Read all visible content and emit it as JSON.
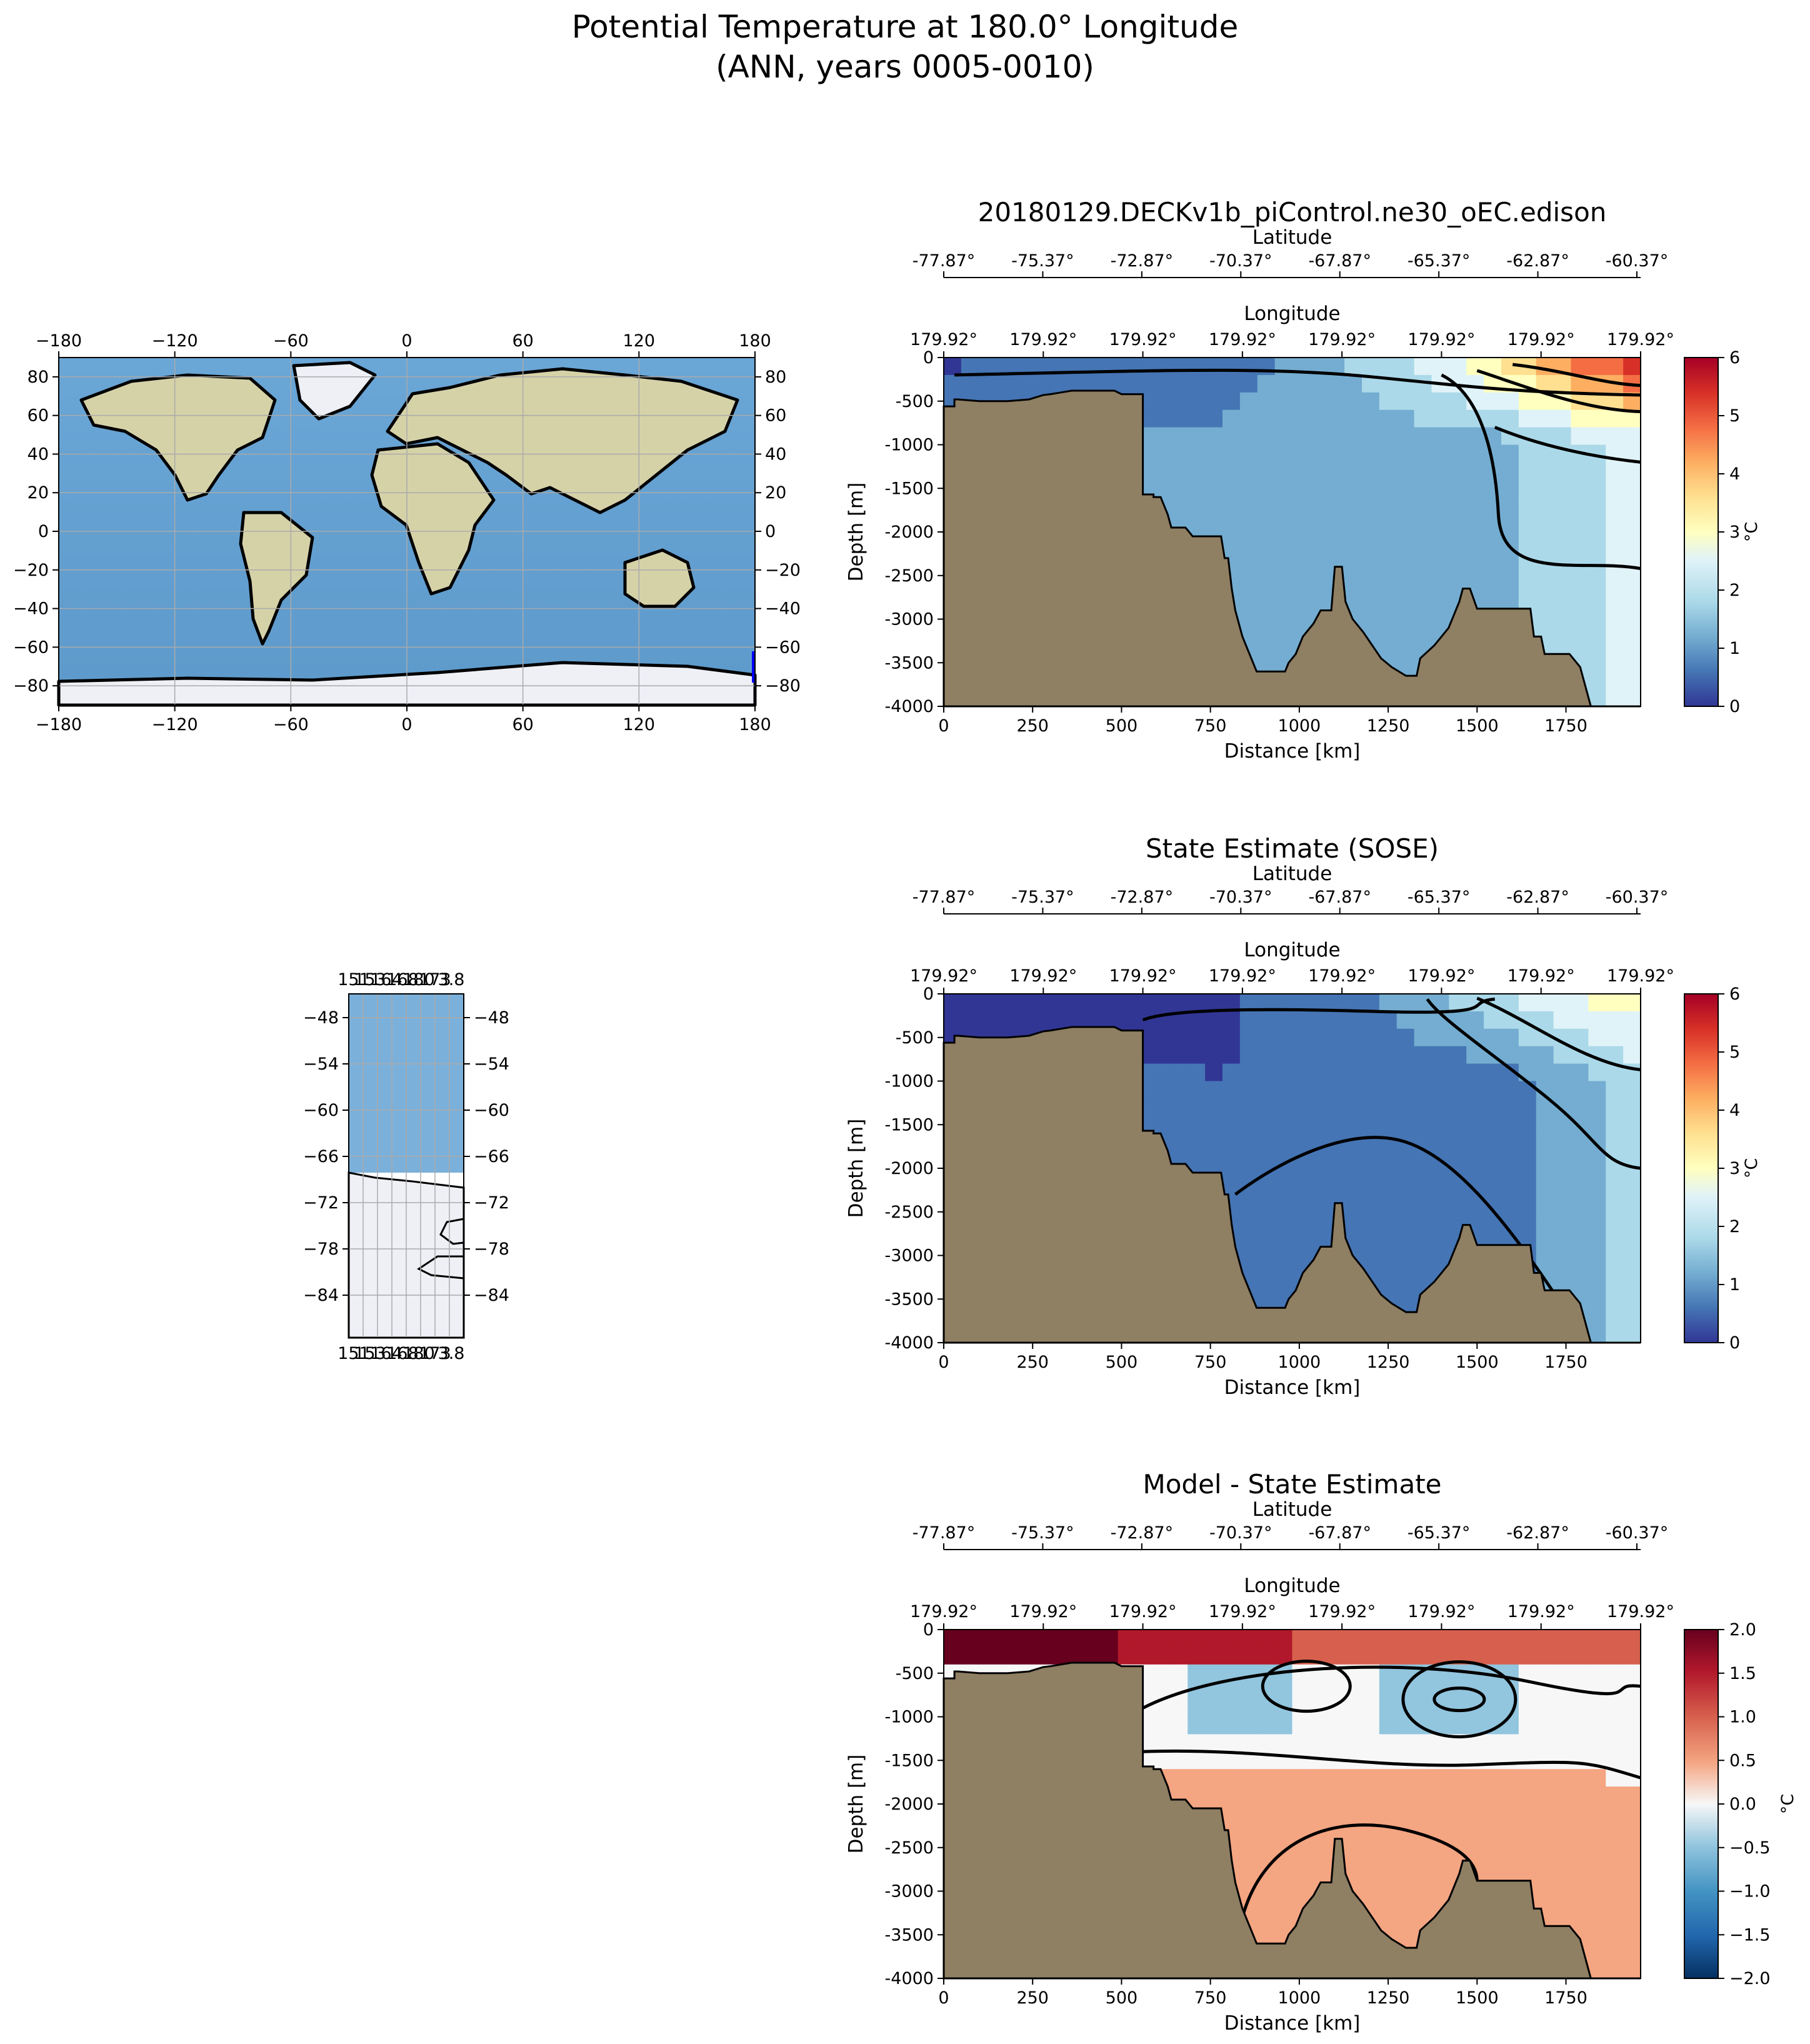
{
  "figure": {
    "title_line1": "Potential Temperature at 180.0° Longitude",
    "title_line2": "(ANN, years 0005-0010)"
  },
  "colors": {
    "land": "#8f7f63",
    "ocean_map": "#6fa8d4",
    "land_map": "#d6d2a8",
    "ice_map": "#eef0f6",
    "contour": "#000000",
    "grid": "#aaaaaa"
  },
  "maps": {
    "global": {
      "x_ticks": [
        "−180",
        "−120",
        "−60",
        "0",
        "60",
        "120",
        "180"
      ],
      "y_ticks": [
        "80",
        "60",
        "40",
        "20",
        "0",
        "−20",
        "−40",
        "−60",
        "−80"
      ]
    },
    "regional": {
      "x_ticks_overlapping_text": [
        "151",
        "153",
        "164",
        "168",
        "180",
        "173",
        "3.8"
      ],
      "y_ticks": [
        "−48",
        "−54",
        "−60",
        "−66",
        "−72",
        "−78",
        "−84"
      ]
    }
  },
  "panels": [
    {
      "title": "20180129.DECKv1b_piControl.ne30_oEC.edison",
      "colorbar": {
        "label": "°C",
        "cmap": "RdYlBu_r",
        "vmin": 0,
        "vmax": 6,
        "ticks": [
          "0",
          "1",
          "2",
          "3",
          "4",
          "5",
          "6"
        ]
      },
      "contour_levels": [
        0.5,
        1,
        1.5,
        2,
        2.5,
        3,
        3.5,
        4,
        5
      ]
    },
    {
      "title": "State Estimate (SOSE)",
      "colorbar": {
        "label": "°C",
        "cmap": "RdYlBu_r",
        "vmin": 0,
        "vmax": 6,
        "ticks": [
          "0",
          "1",
          "2",
          "3",
          "4",
          "5",
          "6"
        ]
      },
      "contour_levels": [
        0.5,
        1,
        1.5,
        2,
        2.5,
        3
      ]
    },
    {
      "title": "Model - State Estimate",
      "colorbar": {
        "label": "°C",
        "cmap": "RdBu_r",
        "vmin": -2,
        "vmax": 2,
        "ticks": [
          "2.0",
          "1.5",
          "1.0",
          "0.5",
          "0.0",
          "−0.5",
          "−1.0",
          "−1.5",
          "−2.0"
        ]
      },
      "contour_levels": [
        -0.5,
        -0.25,
        0,
        0.25,
        0.5,
        1
      ]
    }
  ],
  "chart_data": {
    "type": "heatmap",
    "xlabel": "Distance [km]",
    "ylabel": "Depth [m]",
    "secondary_axes": {
      "latitude_label": "Latitude",
      "latitude_ticks": [
        "-77.87°",
        "-75.37°",
        "-72.87°",
        "-70.37°",
        "-67.87°",
        "-65.37°",
        "-62.87°",
        "-60.37°"
      ],
      "longitude_label": "Longitude",
      "longitude_ticks": [
        "179.92°",
        "179.92°",
        "179.92°",
        "179.92°",
        "179.92°",
        "179.92°",
        "179.92°",
        "179.92°"
      ]
    },
    "xlim": [
      0,
      1960
    ],
    "ylim": [
      -4000,
      0
    ],
    "x_ticks": [
      0,
      250,
      500,
      750,
      1000,
      1250,
      1500,
      1750
    ],
    "y_ticks": [
      0,
      -500,
      -1000,
      -1500,
      -2000,
      -2500,
      -3000,
      -3500,
      -4000
    ],
    "bathymetry_depth": [
      [
        0,
        -560
      ],
      [
        30,
        -560
      ],
      [
        30,
        -480
      ],
      [
        40,
        -480
      ],
      [
        100,
        -500
      ],
      [
        180,
        -500
      ],
      [
        240,
        -480
      ],
      [
        280,
        -430
      ],
      [
        300,
        -420
      ],
      [
        330,
        -400
      ],
      [
        360,
        -380
      ],
      [
        480,
        -380
      ],
      [
        500,
        -420
      ],
      [
        560,
        -420
      ],
      [
        560,
        -1570
      ],
      [
        590,
        -1570
      ],
      [
        590,
        -1600
      ],
      [
        610,
        -1600
      ],
      [
        630,
        -1800
      ],
      [
        640,
        -1950
      ],
      [
        680,
        -1950
      ],
      [
        700,
        -2050
      ],
      [
        780,
        -2050
      ],
      [
        790,
        -2300
      ],
      [
        800,
        -2300
      ],
      [
        810,
        -2650
      ],
      [
        820,
        -2900
      ],
      [
        840,
        -3200
      ],
      [
        860,
        -3400
      ],
      [
        880,
        -3600
      ],
      [
        960,
        -3600
      ],
      [
        970,
        -3500
      ],
      [
        990,
        -3400
      ],
      [
        1010,
        -3200
      ],
      [
        1040,
        -3050
      ],
      [
        1060,
        -2900
      ],
      [
        1090,
        -2900
      ],
      [
        1100,
        -2400
      ],
      [
        1120,
        -2400
      ],
      [
        1130,
        -2800
      ],
      [
        1150,
        -3000
      ],
      [
        1180,
        -3150
      ],
      [
        1230,
        -3450
      ],
      [
        1260,
        -3550
      ],
      [
        1300,
        -3650
      ],
      [
        1330,
        -3650
      ],
      [
        1340,
        -3450
      ],
      [
        1380,
        -3300
      ],
      [
        1420,
        -3100
      ],
      [
        1450,
        -2800
      ],
      [
        1460,
        -2650
      ],
      [
        1480,
        -2650
      ],
      [
        1500,
        -2880
      ],
      [
        1650,
        -2880
      ],
      [
        1660,
        -3200
      ],
      [
        1680,
        -3200
      ],
      [
        1690,
        -3400
      ],
      [
        1760,
        -3400
      ],
      [
        1790,
        -3550
      ],
      [
        1810,
        -3850
      ],
      [
        1820,
        -4000
      ],
      [
        1960,
        -4000
      ]
    ],
    "series": [
      {
        "name": "20180129.DECKv1b_piControl.ne30_oEC.edison",
        "surface_temp_south_to_north": [
          0.2,
          0.3,
          0.4,
          0.6,
          1.0,
          1.8,
          2.8,
          4.5,
          5.6
        ],
        "deep_temp_south_to_north": [
          1.0,
          1.0,
          1.0,
          1.1,
          1.3,
          2.4
        ]
      },
      {
        "name": "State Estimate (SOSE)",
        "surface_temp_south_to_north": [
          -0.1,
          0.0,
          0.1,
          0.2,
          0.4,
          1.0,
          1.8,
          2.6,
          3.1
        ],
        "deep_temp_south_to_north": [
          0.4,
          0.4,
          0.3,
          0.4,
          0.6,
          1.8
        ]
      },
      {
        "name": "Model - State Estimate",
        "surface_diff_south_to_north": [
          1.9,
          1.9,
          1.6,
          1.4,
          1.2,
          1.0,
          0.9,
          1.2,
          1.6
        ],
        "interior_diff_range": [
          -0.7,
          0.8
        ]
      }
    ]
  }
}
